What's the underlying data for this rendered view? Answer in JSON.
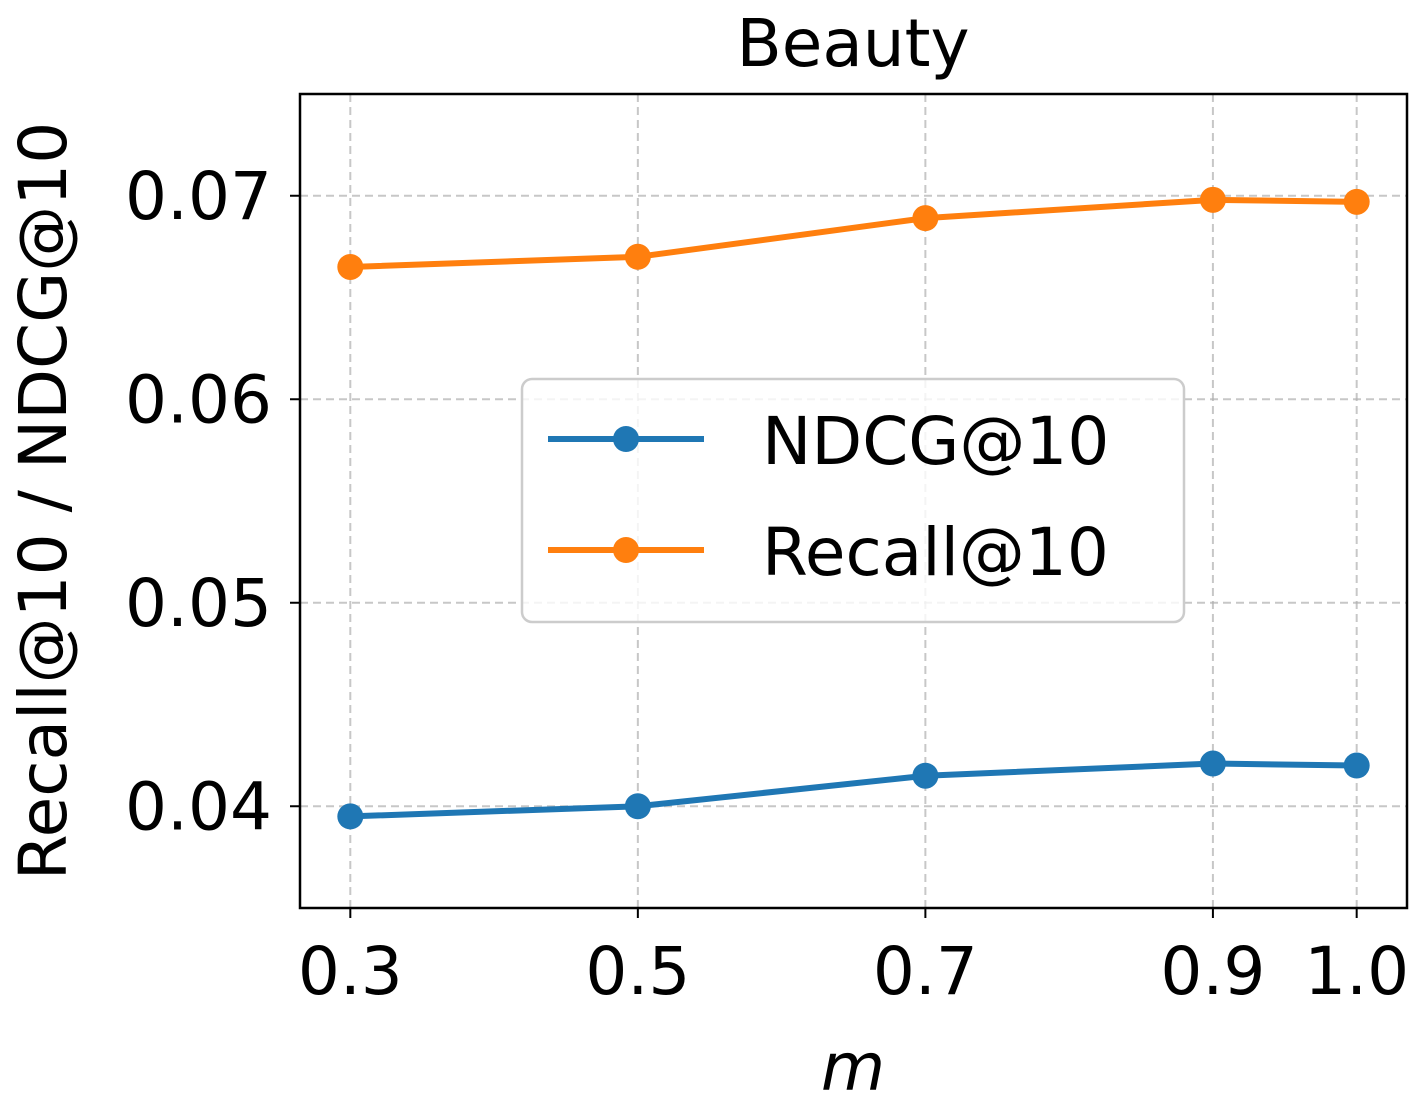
{
  "chart_data": {
    "type": "line",
    "title": "Beauty",
    "xlabel": "m",
    "ylabel": "Recall@10 / NDCG@10",
    "x": [
      0.3,
      0.5,
      0.7,
      0.9,
      1.0
    ],
    "xtick_labels": [
      "0.3",
      "0.5",
      "0.7",
      "0.9",
      "1.0"
    ],
    "yticks": [
      0.04,
      0.05,
      0.06,
      0.07
    ],
    "ytick_labels": [
      "0.04",
      "0.05",
      "0.06",
      "0.07"
    ],
    "xlim": [
      0.265,
      1.035
    ],
    "ylim": [
      0.035,
      0.075
    ],
    "grid": true,
    "legend_position": "center",
    "series": [
      {
        "name": "NDCG@10",
        "color": "#1f77b4",
        "values": [
          0.0395,
          0.04,
          0.0415,
          0.0421,
          0.042
        ]
      },
      {
        "name": "Recall@10",
        "color": "#ff7f0e",
        "values": [
          0.0665,
          0.067,
          0.0689,
          0.0698,
          0.0697
        ]
      }
    ]
  }
}
